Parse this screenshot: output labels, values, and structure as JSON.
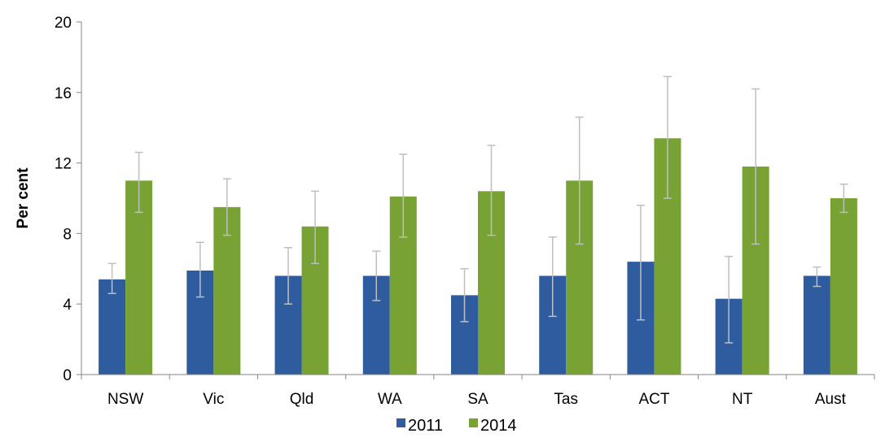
{
  "chart_data": {
    "type": "bar",
    "categories": [
      "NSW",
      "Vic",
      "Qld",
      "WA",
      "SA",
      "Tas",
      "ACT",
      "NT",
      "Aust"
    ],
    "series": [
      {
        "name": "2011",
        "color": "#2E5C9E",
        "values": [
          5.4,
          5.9,
          5.6,
          5.6,
          4.5,
          5.6,
          6.4,
          4.3,
          5.6
        ],
        "error_low": [
          4.6,
          4.4,
          4.0,
          4.2,
          3.0,
          3.3,
          3.1,
          1.8,
          5.0
        ],
        "error_high": [
          6.3,
          7.5,
          7.2,
          7.0,
          6.0,
          7.8,
          9.6,
          6.7,
          6.1
        ]
      },
      {
        "name": "2014",
        "color": "#78A234",
        "values": [
          11.0,
          9.5,
          8.4,
          10.1,
          10.4,
          11.0,
          13.4,
          11.8,
          10.0
        ],
        "error_low": [
          9.2,
          7.9,
          6.3,
          7.8,
          7.9,
          7.4,
          10.0,
          7.4,
          9.2
        ],
        "error_high": [
          12.6,
          11.1,
          10.4,
          12.5,
          13.0,
          14.6,
          16.9,
          16.2,
          10.8
        ]
      }
    ],
    "ylabel": "Per cent",
    "xlabel": "",
    "title": "",
    "ylim": [
      0,
      20
    ],
    "yticks": [
      "0",
      "4",
      "8",
      "12",
      "16",
      "20"
    ],
    "ytick_values": [
      0,
      4,
      8,
      12,
      16,
      20
    ],
    "error_bar_color": "#BFBFBF",
    "grid": false,
    "legend_position": "bottom"
  }
}
